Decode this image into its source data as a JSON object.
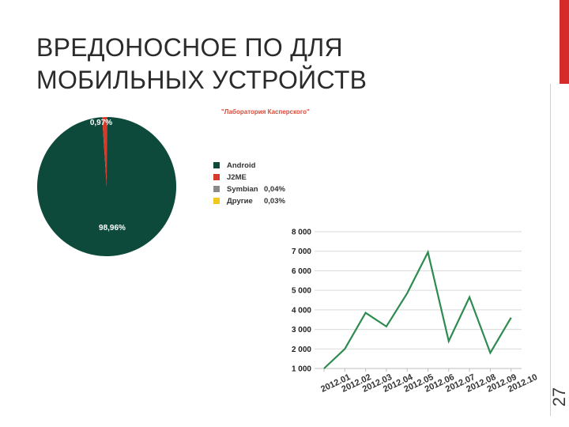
{
  "slide": {
    "title_lines": [
      "ВРЕДОНОСНОЕ ПО ДЛЯ",
      "МОБИЛЬНЫХ УСТРОЙСТВ"
    ],
    "page_number": "27",
    "source": "\"Лаборатория Касперского\"",
    "accent_color": "#d62b2b"
  },
  "chart_data": [
    {
      "type": "pie",
      "slices": [
        {
          "name": "Android",
          "value": 98.96,
          "label": "98,96%",
          "color": "#0d4a3c"
        },
        {
          "name": "J2ME",
          "value": 0.97,
          "label": "0,97%",
          "color": "#d63a2c"
        },
        {
          "name": "Symbian",
          "value": 0.04,
          "label": "0,04%",
          "color": "#8a8a8a"
        },
        {
          "name": "Другие",
          "value": 0.03,
          "label": "0,03%",
          "color": "#f2c81d"
        }
      ],
      "legend": "right"
    },
    {
      "type": "line",
      "x": [
        "2012.01",
        "2012.02",
        "2012.03",
        "2012.04",
        "2012.05",
        "2012.06",
        "2012.07",
        "2012.08",
        "2012.09",
        "2012.10"
      ],
      "series": [
        {
          "values": [
            1000,
            2000,
            3850,
            3150,
            4850,
            6950,
            2400,
            4650,
            1800,
            3600
          ],
          "color": "#2e8b50"
        }
      ],
      "yticks": [
        "1 000",
        "2 000",
        "3 000",
        "4 000",
        "5 000",
        "6 000",
        "7 000",
        "8 000"
      ],
      "ylim": [
        1000,
        8000
      ],
      "grid": true
    }
  ]
}
